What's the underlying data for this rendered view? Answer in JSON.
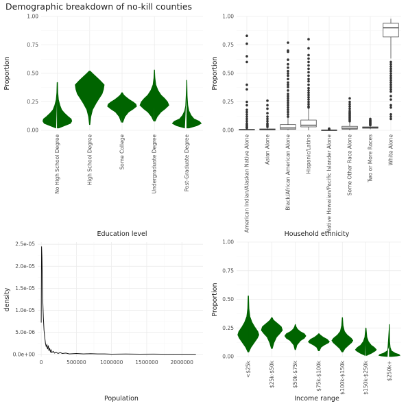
{
  "title": "Demographic breakdown of no-kill counties",
  "chart_data": [
    {
      "type": "violin",
      "panel": "education",
      "xlabel": "Education level",
      "ylabel": "Proportion",
      "ylim": [
        0,
        1
      ],
      "yticks": [
        "0.00",
        "0.25",
        "0.50",
        "0.75",
        "1.00"
      ],
      "yticks_values": [
        0,
        0.25,
        0.5,
        0.75,
        1
      ],
      "color": "#006400",
      "categories": [
        "No High School Degree",
        "High School Degree",
        "Some College",
        "Undergraduate Degree",
        "Post-Graduate Degree"
      ],
      "violins": [
        {
          "min": 0.02,
          "max": 0.42,
          "profile": [
            [
              0.02,
              0.1
            ],
            [
              0.04,
              0.5
            ],
            [
              0.06,
              0.9
            ],
            [
              0.08,
              1.0
            ],
            [
              0.1,
              0.95
            ],
            [
              0.12,
              0.75
            ],
            [
              0.15,
              0.5
            ],
            [
              0.18,
              0.3
            ],
            [
              0.22,
              0.18
            ],
            [
              0.27,
              0.08
            ],
            [
              0.33,
              0.04
            ],
            [
              0.42,
              0.02
            ]
          ]
        },
        {
          "min": 0.05,
          "max": 0.52,
          "profile": [
            [
              0.05,
              0.02
            ],
            [
              0.12,
              0.08
            ],
            [
              0.18,
              0.2
            ],
            [
              0.24,
              0.45
            ],
            [
              0.28,
              0.65
            ],
            [
              0.32,
              0.85
            ],
            [
              0.36,
              0.95
            ],
            [
              0.4,
              1.0
            ],
            [
              0.44,
              0.7
            ],
            [
              0.47,
              0.45
            ],
            [
              0.5,
              0.2
            ],
            [
              0.52,
              0.04
            ]
          ]
        },
        {
          "min": 0.07,
          "max": 0.33,
          "profile": [
            [
              0.07,
              0.05
            ],
            [
              0.12,
              0.2
            ],
            [
              0.16,
              0.45
            ],
            [
              0.19,
              0.8
            ],
            [
              0.21,
              1.0
            ],
            [
              0.23,
              0.95
            ],
            [
              0.25,
              0.75
            ],
            [
              0.27,
              0.5
            ],
            [
              0.29,
              0.3
            ],
            [
              0.31,
              0.12
            ],
            [
              0.33,
              0.03
            ]
          ]
        },
        {
          "min": 0.08,
          "max": 0.53,
          "profile": [
            [
              0.08,
              0.05
            ],
            [
              0.12,
              0.2
            ],
            [
              0.16,
              0.45
            ],
            [
              0.19,
              0.75
            ],
            [
              0.22,
              1.0
            ],
            [
              0.25,
              0.9
            ],
            [
              0.28,
              0.7
            ],
            [
              0.31,
              0.45
            ],
            [
              0.35,
              0.25
            ],
            [
              0.4,
              0.1
            ],
            [
              0.46,
              0.04
            ],
            [
              0.53,
              0.01
            ]
          ]
        },
        {
          "min": 0.02,
          "max": 0.44,
          "profile": [
            [
              0.02,
              0.15
            ],
            [
              0.04,
              0.7
            ],
            [
              0.06,
              1.0
            ],
            [
              0.08,
              0.85
            ],
            [
              0.1,
              0.5
            ],
            [
              0.13,
              0.3
            ],
            [
              0.17,
              0.15
            ],
            [
              0.22,
              0.07
            ],
            [
              0.3,
              0.03
            ],
            [
              0.44,
              0.01
            ]
          ]
        }
      ]
    },
    {
      "type": "box",
      "panel": "ethnicity",
      "xlabel": "Household ethnicity",
      "ylabel": "Proportion",
      "ylim": [
        0,
        1
      ],
      "yticks": [
        "0.00",
        "0.25",
        "0.50",
        "0.75",
        "1.00"
      ],
      "yticks_values": [
        0,
        0.25,
        0.5,
        0.75,
        1
      ],
      "categories": [
        "American Indian/Alaskan Native Alone",
        "Asian Alone",
        "Black/African American Alone",
        "Hispanic/Latino",
        "Native Hawaiian/Pacific Islander Alone",
        "Some Other Race Alone",
        "Two or More Races",
        "White Alone"
      ],
      "boxes": [
        {
          "q1": 0.002,
          "median": 0.004,
          "q3": 0.008,
          "whisker_low": 0.0,
          "whisker_high": 0.016,
          "outliers": [
            0.83,
            0.76,
            0.65,
            0.6,
            0.4,
            0.36,
            0.25,
            0.22,
            0.18,
            0.16,
            0.14,
            0.12,
            0.1,
            0.08,
            0.06,
            0.05,
            0.04,
            0.03,
            0.025,
            0.02
          ]
        },
        {
          "q1": 0.003,
          "median": 0.006,
          "q3": 0.012,
          "whisker_low": 0.0,
          "whisker_high": 0.025,
          "outliers": [
            0.26,
            0.22,
            0.19,
            0.15,
            0.12,
            0.1,
            0.08,
            0.06,
            0.05,
            0.04,
            0.03
          ]
        },
        {
          "q1": 0.008,
          "median": 0.02,
          "q3": 0.05,
          "whisker_low": 0.0,
          "whisker_high": 0.11,
          "outliers": [
            0.77,
            0.7,
            0.69,
            0.62,
            0.58,
            0.55,
            0.52,
            0.5,
            0.48,
            0.45,
            0.42,
            0.4,
            0.38,
            0.35,
            0.32,
            0.3,
            0.28,
            0.26,
            0.24,
            0.22,
            0.2,
            0.18,
            0.16,
            0.14,
            0.12
          ]
        },
        {
          "q1": 0.03,
          "median": 0.045,
          "q3": 0.09,
          "whisker_low": 0.0,
          "whisker_high": 0.19,
          "outliers": [
            0.8,
            0.72,
            0.66,
            0.63,
            0.6,
            0.57,
            0.54,
            0.51,
            0.48,
            0.45,
            0.43,
            0.4,
            0.37,
            0.35,
            0.33,
            0.31,
            0.29,
            0.27,
            0.25,
            0.23,
            0.21,
            0.2
          ]
        },
        {
          "q1": 0.0,
          "median": 0.001,
          "q3": 0.002,
          "whisker_low": 0.0,
          "whisker_high": 0.004,
          "outliers": [
            0.015,
            0.012,
            0.008,
            0.006
          ]
        },
        {
          "q1": 0.01,
          "median": 0.018,
          "q3": 0.035,
          "whisker_low": 0.0,
          "whisker_high": 0.07,
          "outliers": [
            0.28,
            0.25,
            0.23,
            0.21,
            0.19,
            0.17,
            0.16,
            0.15,
            0.14,
            0.13,
            0.12,
            0.11,
            0.1,
            0.09,
            0.08
          ]
        },
        {
          "q1": 0.018,
          "median": 0.024,
          "q3": 0.03,
          "whisker_low": 0.01,
          "whisker_high": 0.04,
          "outliers": [
            0.1,
            0.09,
            0.085,
            0.08,
            0.075,
            0.07,
            0.065,
            0.06,
            0.055,
            0.05,
            0.045
          ]
        },
        {
          "q1": 0.82,
          "median": 0.9,
          "q3": 0.94,
          "whisker_low": 0.63,
          "whisker_high": 0.98,
          "outliers": [
            0.6,
            0.58,
            0.56,
            0.54,
            0.52,
            0.5,
            0.48,
            0.46,
            0.44,
            0.42,
            0.4,
            0.38,
            0.36,
            0.34,
            0.3,
            0.27,
            0.22,
            0.2,
            0.14,
            0.12,
            0.1
          ]
        }
      ]
    },
    {
      "type": "density",
      "panel": "population",
      "xlabel": "Population",
      "ylabel": "density",
      "xlim": [
        -50000,
        2300000
      ],
      "ylim": [
        -5e-07,
        2.55e-05
      ],
      "xticks": [
        "0",
        "500000",
        "1000000",
        "1500000",
        "2000000"
      ],
      "xticks_values": [
        0,
        500000,
        1000000,
        1500000,
        2000000
      ],
      "yticks": [
        "0.0e+00",
        "5.0e-06",
        "1.0e-05",
        "1.5e-05",
        "2.0e-05",
        "2.5e-05"
      ],
      "yticks_values": [
        0,
        5e-06,
        1e-05,
        1.5e-05,
        2e-05,
        2.5e-05
      ],
      "x": [
        0,
        5000,
        10000,
        15000,
        20000,
        30000,
        40000,
        50000,
        60000,
        70000,
        80000,
        90000,
        100000,
        110000,
        120000,
        130000,
        140000,
        150000,
        170000,
        190000,
        210000,
        240000,
        270000,
        300000,
        350000,
        400000,
        500000,
        600000,
        700000,
        800000,
        900000,
        1000000,
        1200000,
        1400000,
        1600000,
        1800000,
        2000000,
        2200000
      ],
      "y": [
        7.2e-06,
        2.45e-05,
        2.2e-05,
        1.7e-05,
        1.3e-05,
        8.5e-06,
        5.5e-06,
        3.8e-06,
        2.5e-06,
        1.8e-06,
        2.2e-06,
        1.2e-06,
        2e-06,
        8e-07,
        1.4e-06,
        6e-07,
        1e-06,
        4e-07,
        7e-07,
        3e-07,
        5e-07,
        2e-07,
        4e-07,
        2e-07,
        3e-07,
        1e-07,
        2e-07,
        1e-07,
        1.5e-07,
        1e-07,
        1e-07,
        5e-08,
        8e-08,
        4e-08,
        6e-08,
        3e-08,
        4e-08,
        2e-08
      ]
    },
    {
      "type": "violin",
      "panel": "income",
      "xlabel": "Income range",
      "ylabel": "Proportion",
      "ylim": [
        0,
        1
      ],
      "yticks": [
        "0.00",
        "0.25",
        "0.50",
        "0.75",
        "1.00"
      ],
      "yticks_values": [
        0,
        0.25,
        0.5,
        0.75,
        1
      ],
      "color": "#006400",
      "categories": [
        "<$25k",
        "$25k-$50k",
        "$50k-$75k",
        "$75k-$100k",
        "$100k-$150k",
        "$150k-$250k",
        "$250k+"
      ],
      "violins": [
        {
          "min": 0.04,
          "max": 0.53,
          "profile": [
            [
              0.04,
              0.05
            ],
            [
              0.08,
              0.25
            ],
            [
              0.12,
              0.55
            ],
            [
              0.16,
              0.85
            ],
            [
              0.19,
              1.0
            ],
            [
              0.22,
              0.9
            ],
            [
              0.26,
              0.6
            ],
            [
              0.3,
              0.35
            ],
            [
              0.35,
              0.15
            ],
            [
              0.42,
              0.06
            ],
            [
              0.53,
              0.02
            ]
          ]
        },
        {
          "min": 0.07,
          "max": 0.34,
          "profile": [
            [
              0.07,
              0.05
            ],
            [
              0.12,
              0.2
            ],
            [
              0.17,
              0.45
            ],
            [
              0.2,
              0.75
            ],
            [
              0.23,
              1.0
            ],
            [
              0.26,
              0.9
            ],
            [
              0.28,
              0.65
            ],
            [
              0.3,
              0.4
            ],
            [
              0.32,
              0.15
            ],
            [
              0.34,
              0.04
            ]
          ]
        },
        {
          "min": 0.06,
          "max": 0.28,
          "profile": [
            [
              0.06,
              0.04
            ],
            [
              0.1,
              0.15
            ],
            [
              0.14,
              0.5
            ],
            [
              0.16,
              0.85
            ],
            [
              0.18,
              1.0
            ],
            [
              0.2,
              0.85
            ],
            [
              0.22,
              0.45
            ],
            [
              0.24,
              0.2
            ],
            [
              0.26,
              0.08
            ],
            [
              0.28,
              0.02
            ]
          ]
        },
        {
          "min": 0.05,
          "max": 0.2,
          "profile": [
            [
              0.05,
              0.05
            ],
            [
              0.08,
              0.2
            ],
            [
              0.1,
              0.5
            ],
            [
              0.12,
              0.9
            ],
            [
              0.13,
              1.0
            ],
            [
              0.15,
              0.8
            ],
            [
              0.17,
              0.4
            ],
            [
              0.19,
              0.12
            ],
            [
              0.2,
              0.03
            ]
          ]
        },
        {
          "min": 0.04,
          "max": 0.34,
          "profile": [
            [
              0.04,
              0.05
            ],
            [
              0.07,
              0.25
            ],
            [
              0.1,
              0.6
            ],
            [
              0.12,
              0.85
            ],
            [
              0.14,
              1.0
            ],
            [
              0.16,
              0.85
            ],
            [
              0.19,
              0.45
            ],
            [
              0.22,
              0.2
            ],
            [
              0.27,
              0.07
            ],
            [
              0.34,
              0.02
            ]
          ]
        },
        {
          "min": 0.01,
          "max": 0.25,
          "profile": [
            [
              0.01,
              0.1
            ],
            [
              0.03,
              0.55
            ],
            [
              0.05,
              0.9
            ],
            [
              0.06,
              1.0
            ],
            [
              0.08,
              0.8
            ],
            [
              0.1,
              0.5
            ],
            [
              0.13,
              0.25
            ],
            [
              0.17,
              0.1
            ],
            [
              0.25,
              0.02
            ]
          ]
        },
        {
          "min": 0.0,
          "max": 0.28,
          "profile": [
            [
              0.0,
              0.2
            ],
            [
              0.005,
              0.7
            ],
            [
              0.01,
              1.0
            ],
            [
              0.02,
              0.9
            ],
            [
              0.03,
              0.55
            ],
            [
              0.05,
              0.2
            ],
            [
              0.08,
              0.08
            ],
            [
              0.13,
              0.03
            ],
            [
              0.28,
              0.01
            ]
          ]
        }
      ]
    }
  ]
}
